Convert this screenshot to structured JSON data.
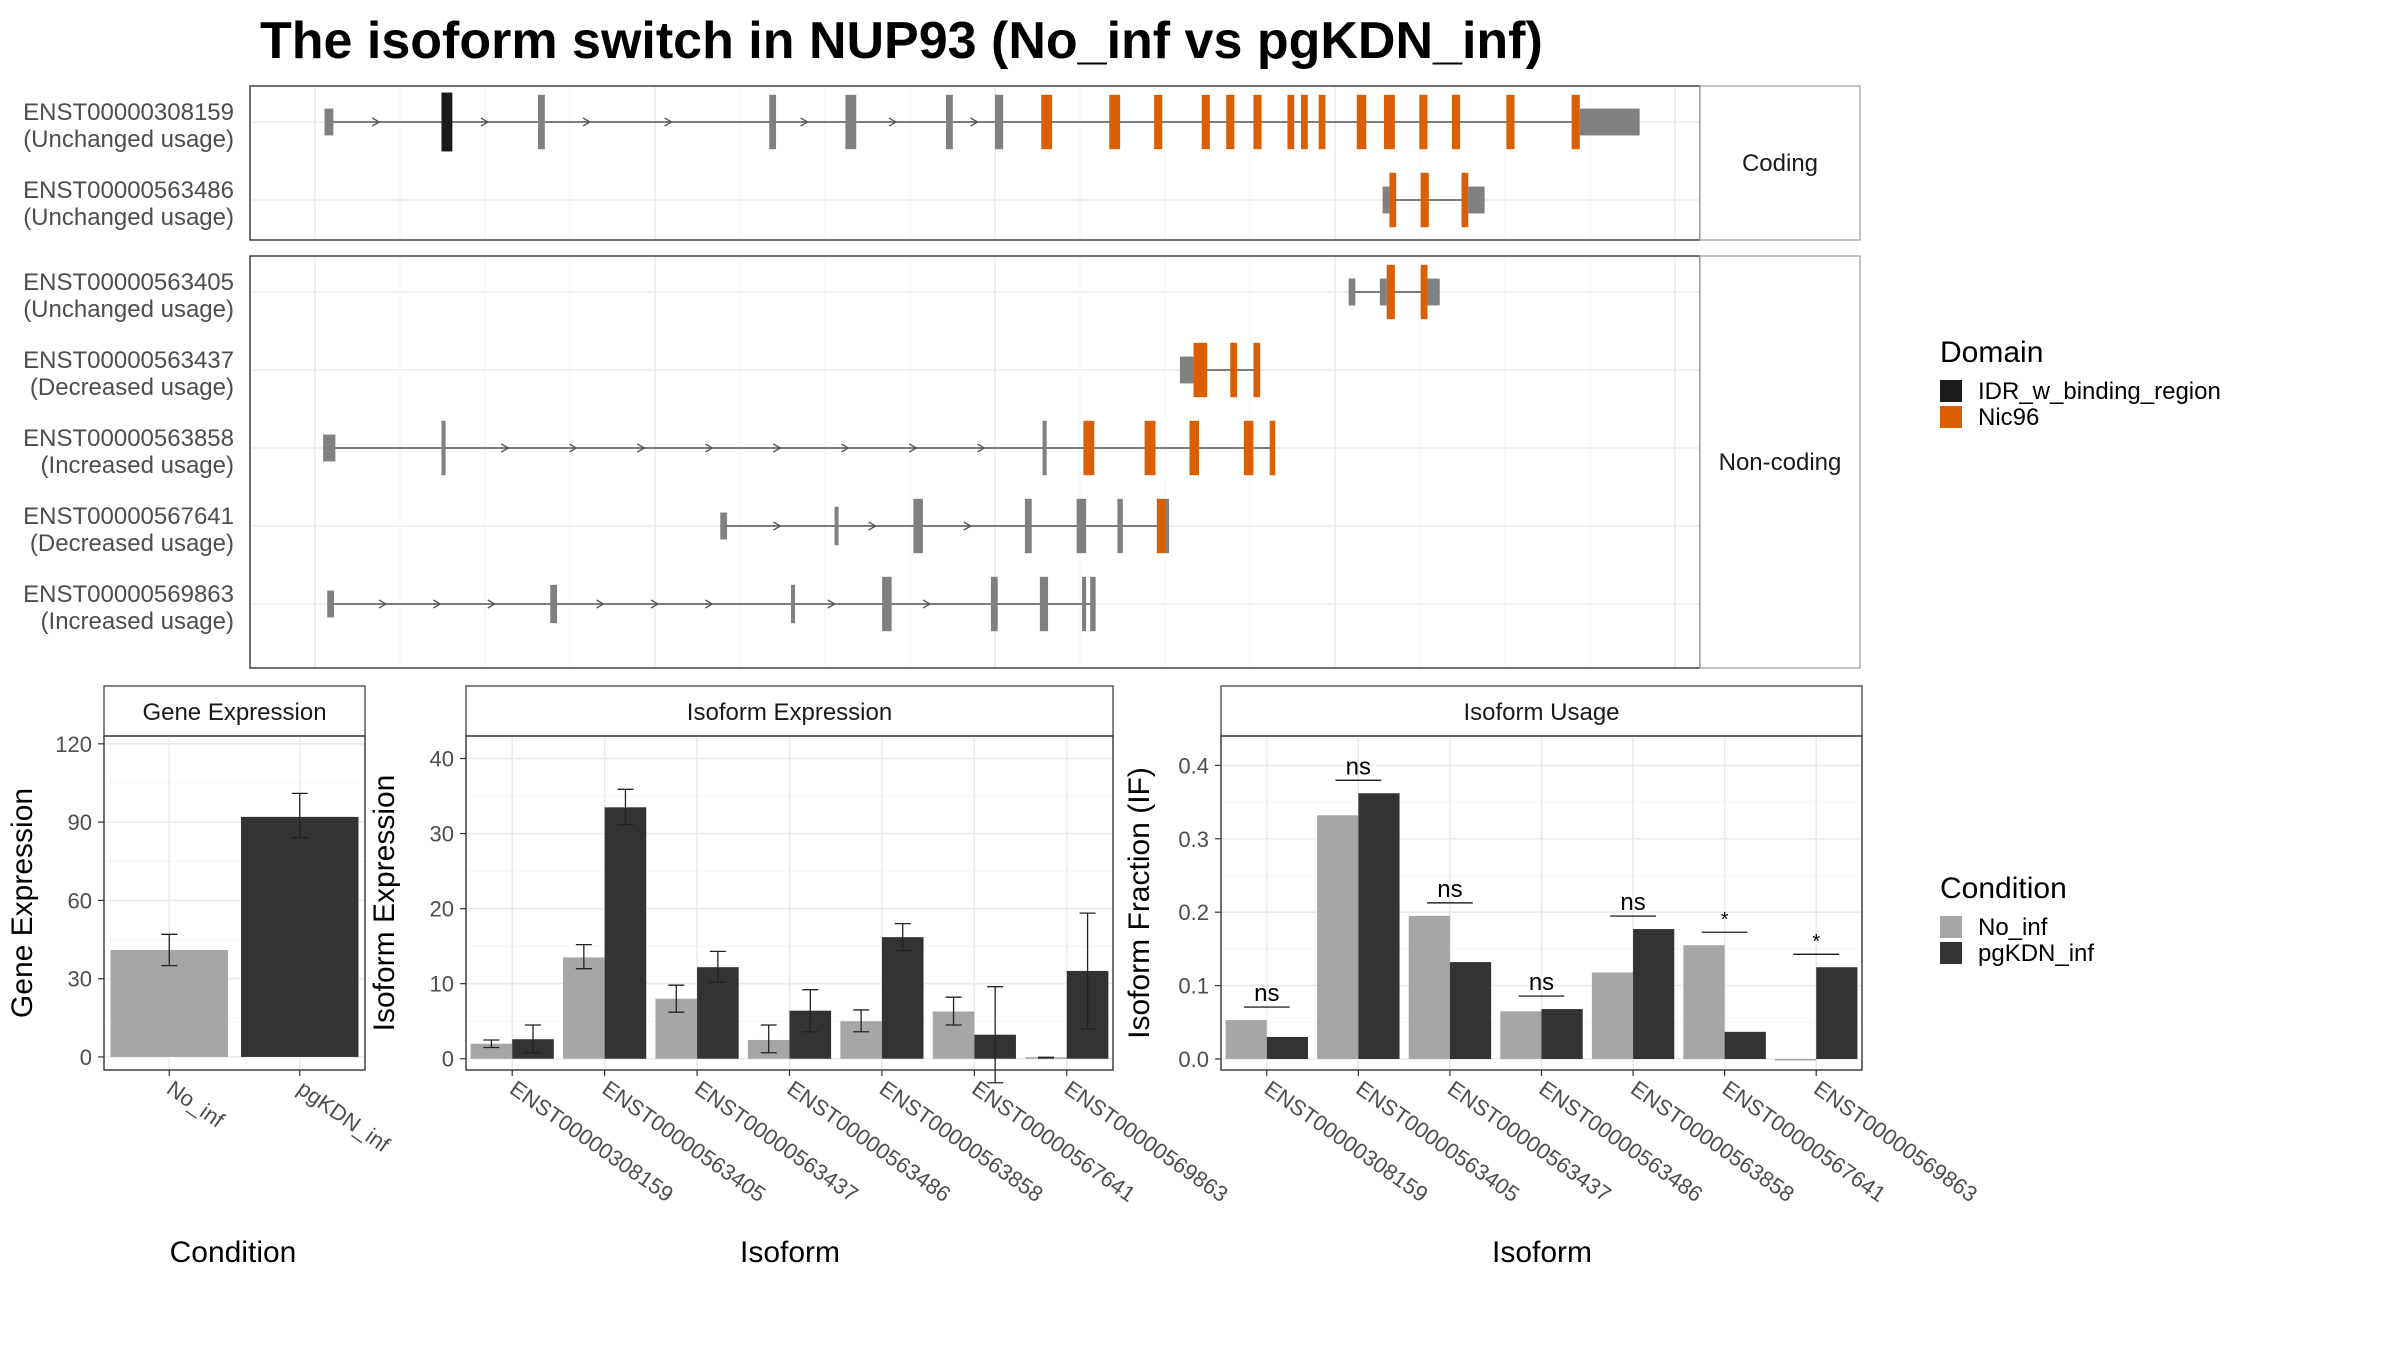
{
  "title": "The isoform switch in NUP93 (No_inf vs pgKDN_inf)",
  "colors": {
    "exon": "#808080",
    "intron": "#555555",
    "IDR_w_binding_region": "#1a1a1a",
    "Nic96": "#d95f02",
    "No_inf": "#a6a6a6",
    "pgKDN_inf": "#333333"
  },
  "transcripts": {
    "groups": [
      {
        "label": "Coding",
        "rows": [
          {
            "id": "ENST00000308159",
            "usage": "(Unchanged usage)",
            "segments": [
              [
                0.7,
                1.35,
                "exon",
                0.42
              ],
              [
                9.3,
                10.1,
                "IDR_w_binding_region",
                0.92
              ],
              [
                16.4,
                16.9,
                "exon",
                0.85
              ],
              [
                33.4,
                33.9,
                "exon",
                0.85
              ],
              [
                39.0,
                39.8,
                "exon",
                0.85
              ],
              [
                46.4,
                46.9,
                "exon",
                0.85
              ],
              [
                50.0,
                50.6,
                "exon",
                0.85
              ],
              [
                53.4,
                54.2,
                "Nic96",
                0.85
              ],
              [
                58.4,
                59.2,
                "Nic96",
                0.85
              ],
              [
                61.7,
                62.3,
                "Nic96",
                0.85
              ],
              [
                65.2,
                65.8,
                "Nic96",
                0.85
              ],
              [
                67.0,
                67.6,
                "Nic96",
                0.85
              ],
              [
                69.0,
                69.6,
                "Nic96",
                0.85
              ],
              [
                71.5,
                72.0,
                "Nic96",
                0.85
              ],
              [
                72.5,
                73.0,
                "Nic96",
                0.85
              ],
              [
                73.8,
                74.3,
                "Nic96",
                0.85
              ],
              [
                76.6,
                77.3,
                "Nic96",
                0.85
              ],
              [
                78.6,
                79.4,
                "Nic96",
                0.85
              ],
              [
                81.2,
                81.8,
                "Nic96",
                0.85
              ],
              [
                83.6,
                84.2,
                "Nic96",
                0.85
              ],
              [
                87.6,
                88.2,
                "Nic96",
                0.85
              ],
              [
                92.4,
                93.0,
                "Nic96",
                0.85
              ],
              [
                93.0,
                97.4,
                "exon",
                0.42
              ]
            ],
            "arrows": [
              4.5,
              12.5,
              20,
              26,
              36,
              42.5,
              48.5
            ]
          },
          {
            "id": "ENST00000563486",
            "usage": "(Unchanged usage)",
            "segments": [
              [
                78.5,
                79.0,
                "exon",
                0.42
              ],
              [
                79.0,
                79.5,
                "Nic96",
                0.85
              ],
              [
                81.3,
                81.9,
                "Nic96",
                0.85
              ],
              [
                84.3,
                84.8,
                "Nic96",
                0.85
              ],
              [
                84.8,
                86.0,
                "exon",
                0.42
              ]
            ],
            "arrows": []
          }
        ]
      },
      {
        "label": "Non-coding",
        "rows": [
          {
            "id": "ENST00000563405",
            "usage": "(Unchanged usage)",
            "segments": [
              [
                76.0,
                76.5,
                "exon",
                0.42
              ],
              [
                78.3,
                78.8,
                "exon",
                0.42
              ],
              [
                78.8,
                79.4,
                "Nic96",
                0.85
              ],
              [
                81.3,
                81.8,
                "Nic96",
                0.85
              ],
              [
                81.8,
                82.7,
                "exon",
                0.42
              ]
            ],
            "arrows": []
          },
          {
            "id": "ENST00000563437",
            "usage": "(Decreased usage)",
            "segments": [
              [
                63.6,
                64.6,
                "exon",
                0.42
              ],
              [
                64.6,
                65.6,
                "Nic96",
                0.85
              ],
              [
                67.3,
                67.8,
                "Nic96",
                0.85
              ],
              [
                69.0,
                69.5,
                "Nic96",
                0.85
              ]
            ],
            "arrows": []
          },
          {
            "id": "ENST00000563858",
            "usage": "(Increased usage)",
            "segments": [
              [
                0.6,
                1.5,
                "exon",
                0.42
              ],
              [
                9.3,
                9.6,
                "exon",
                0.85
              ],
              [
                53.5,
                53.8,
                "exon",
                0.85
              ],
              [
                56.5,
                57.3,
                "Nic96",
                0.85
              ],
              [
                61.0,
                61.8,
                "Nic96",
                0.85
              ],
              [
                64.3,
                65.0,
                "Nic96",
                0.85
              ],
              [
                68.3,
                69.0,
                "Nic96",
                0.85
              ],
              [
                70.2,
                70.6,
                "Nic96",
                0.85
              ]
            ],
            "arrows": [
              14,
              19,
              24,
              29,
              34,
              39,
              44,
              49
            ]
          },
          {
            "id": "ENST00000567641",
            "usage": "(Decreased usage)",
            "segments": [
              [
                29.8,
                30.3,
                "exon",
                0.42
              ],
              [
                38.2,
                38.5,
                "exon",
                0.6
              ],
              [
                44.0,
                44.7,
                "exon",
                0.85
              ],
              [
                52.2,
                52.7,
                "exon",
                0.85
              ],
              [
                56.0,
                56.7,
                "exon",
                0.85
              ],
              [
                59.0,
                59.4,
                "exon",
                0.85
              ],
              [
                61.9,
                62.5,
                "Nic96",
                0.85
              ],
              [
                62.5,
                62.8,
                "exon",
                0.85
              ]
            ],
            "arrows": [
              34,
              41,
              48
            ]
          },
          {
            "id": "ENST00000569863",
            "usage": "(Increased usage)",
            "segments": [
              [
                0.9,
                1.4,
                "exon",
                0.42
              ],
              [
                17.3,
                17.8,
                "exon",
                0.6
              ],
              [
                35.0,
                35.3,
                "exon",
                0.6
              ],
              [
                41.7,
                42.4,
                "exon",
                0.85
              ],
              [
                49.7,
                50.2,
                "exon",
                0.85
              ],
              [
                53.3,
                53.9,
                "exon",
                0.85
              ],
              [
                56.4,
                56.7,
                "exon",
                0.85
              ],
              [
                57.0,
                57.4,
                "exon",
                0.85
              ]
            ],
            "arrows": [
              5,
              9,
              13,
              21,
              25,
              29,
              38,
              45
            ]
          }
        ]
      }
    ]
  },
  "domain_legend": {
    "title": "Domain",
    "items": [
      {
        "label": "IDR_w_binding_region",
        "color_key": "IDR_w_binding_region"
      },
      {
        "label": "Nic96",
        "color_key": "Nic96"
      }
    ]
  },
  "condition_legend": {
    "title": "Condition",
    "items": [
      {
        "label": "No_inf",
        "color_key": "No_inf"
      },
      {
        "label": "pgKDN_inf",
        "color_key": "pgKDN_inf"
      }
    ]
  },
  "chart_data": [
    {
      "type": "bar",
      "strip": "Gene Expression",
      "xlabel": "Condition",
      "ylabel": "Gene Expression",
      "categories": [
        "No_inf",
        "pgKDN_inf"
      ],
      "values": [
        41,
        92
      ],
      "errors": [
        [
          35,
          47
        ],
        [
          84,
          101
        ]
      ],
      "ylim": [
        -5,
        123
      ],
      "yticks": [
        0,
        30,
        60,
        90,
        120
      ],
      "grid": true
    },
    {
      "type": "bar",
      "strip": "Isoform Expression",
      "xlabel": "Isoform",
      "ylabel": "Isoform Expression",
      "categories": [
        "ENST00000308159",
        "ENST00000563405",
        "ENST00000563437",
        "ENST00000563486",
        "ENST00000563858",
        "ENST00000567641",
        "ENST00000569863"
      ],
      "series": [
        {
          "name": "No_inf",
          "values": [
            2.0,
            13.5,
            8.0,
            2.5,
            5.0,
            6.3,
            0.2
          ],
          "errors": [
            [
              1.5,
              2.5
            ],
            [
              12.0,
              15.2
            ],
            [
              6.2,
              9.8
            ],
            [
              0.8,
              4.5
            ],
            [
              3.6,
              6.5
            ],
            [
              4.5,
              8.2
            ],
            [
              0.1,
              0.2
            ]
          ]
        },
        {
          "name": "pgKDN_inf",
          "values": [
            2.6,
            33.5,
            12.2,
            6.4,
            16.2,
            3.2,
            11.7
          ],
          "errors": [
            [
              0.8,
              4.5
            ],
            [
              31.2,
              35.9
            ],
            [
              10.2,
              14.3
            ],
            [
              3.6,
              9.2
            ],
            [
              14.4,
              18.0
            ],
            [
              -3.2,
              9.6
            ],
            [
              4.0,
              19.4
            ]
          ]
        }
      ],
      "ylim": [
        -1.5,
        43
      ],
      "yticks": [
        0,
        10,
        20,
        30,
        40
      ],
      "grid": true
    },
    {
      "type": "bar",
      "strip": "Isoform Usage",
      "xlabel": "Isoform",
      "ylabel": "Isoform Fraction (IF)",
      "categories": [
        "ENST00000308159",
        "ENST00000563405",
        "ENST00000563437",
        "ENST00000563486",
        "ENST00000563858",
        "ENST00000567641",
        "ENST00000569863"
      ],
      "series": [
        {
          "name": "No_inf",
          "values": [
            0.053,
            0.332,
            0.195,
            0.065,
            0.118,
            0.155,
            0.0
          ]
        },
        {
          "name": "pgKDN_inf",
          "values": [
            0.03,
            0.362,
            0.132,
            0.068,
            0.177,
            0.037,
            0.125
          ]
        }
      ],
      "significance": [
        "ns",
        "ns",
        "ns",
        "ns",
        "ns",
        "*",
        "*"
      ],
      "ylim": [
        -0.015,
        0.44
      ],
      "yticks": [
        0.0,
        0.1,
        0.2,
        0.3,
        0.4
      ],
      "grid": true
    }
  ]
}
